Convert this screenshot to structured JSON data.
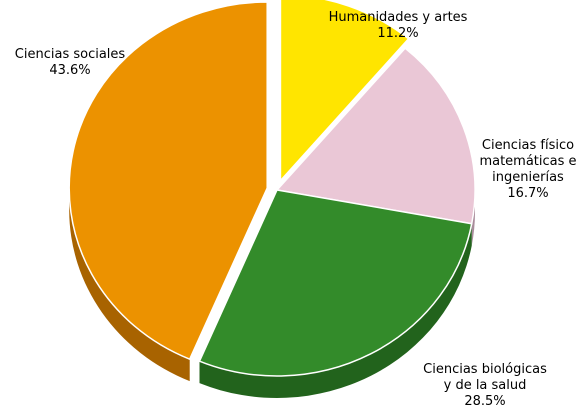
{
  "chart_data": {
    "type": "pie",
    "start_angle_deg": 0,
    "direction": "clockwise",
    "slices": [
      {
        "label_lines": [
          "Humanidades y artes"
        ],
        "value": 11.2,
        "value_label": "11.2%",
        "color": "#FFE500",
        "side_color": "#B8A400",
        "exploded": true
      },
      {
        "label_lines": [
          "Ciencias físico",
          "matemáticas e",
          "ingenierías"
        ],
        "value": 16.7,
        "value_label": "16.7%",
        "color": "#EAC7D6",
        "side_color": "#A98C9B",
        "exploded": false
      },
      {
        "label_lines": [
          "Ciencias biológicas",
          "y de la salud"
        ],
        "value": 28.5,
        "value_label": "28.5%",
        "color": "#338B2A",
        "side_color": "#22631C",
        "exploded": false
      },
      {
        "label_lines": [
          "Ciencias sociales"
        ],
        "value": 43.6,
        "value_label": "43.6%",
        "color": "#EC9200",
        "side_color": "#A86300",
        "exploded": true
      }
    ]
  }
}
